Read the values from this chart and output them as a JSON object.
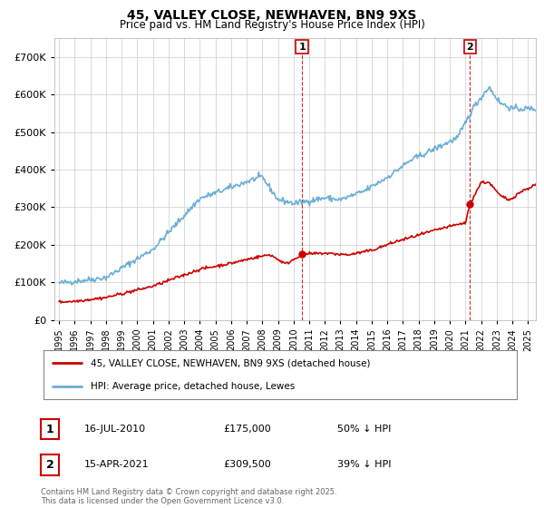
{
  "title": "45, VALLEY CLOSE, NEWHAVEN, BN9 9XS",
  "subtitle": "Price paid vs. HM Land Registry's House Price Index (HPI)",
  "legend_line1": "45, VALLEY CLOSE, NEWHAVEN, BN9 9XS (detached house)",
  "legend_line2": "HPI: Average price, detached house, Lewes",
  "sale1_date": "16-JUL-2010",
  "sale1_price": 175000,
  "sale1_label": "50% ↓ HPI",
  "sale1_x": 2010.54,
  "sale2_date": "15-APR-2021",
  "sale2_price": 309500,
  "sale2_label": "39% ↓ HPI",
  "sale2_x": 2021.29,
  "hpi_color": "#6baed6",
  "price_color": "#CC0000",
  "annotation_color": "#CC0000",
  "background_color": "#FFFFFF",
  "grid_color": "#CCCCCC",
  "footer_text": "Contains HM Land Registry data © Crown copyright and database right 2025.\nThis data is licensed under the Open Government Licence v3.0.",
  "ylim": [
    0,
    750000
  ],
  "xlim": [
    1994.7,
    2025.5
  ],
  "yticks": [
    0,
    100000,
    200000,
    300000,
    400000,
    500000,
    600000,
    700000
  ],
  "ytick_labels": [
    "£0",
    "£100K",
    "£200K",
    "£300K",
    "£400K",
    "£500K",
    "£600K",
    "£700K"
  ],
  "xticks": [
    1995,
    1996,
    1997,
    1998,
    1999,
    2000,
    2001,
    2002,
    2003,
    2004,
    2005,
    2006,
    2007,
    2008,
    2009,
    2010,
    2011,
    2012,
    2013,
    2014,
    2015,
    2016,
    2017,
    2018,
    2019,
    2020,
    2021,
    2022,
    2023,
    2024,
    2025
  ]
}
